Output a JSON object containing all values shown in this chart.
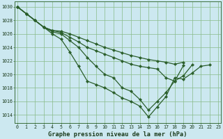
{
  "title": "Graphe pression niveau de la mer (hPa)",
  "bg_color": "#cce8f0",
  "grid_color": "#88bb88",
  "line_color": "#2a5e2a",
  "xlim_min": -0.3,
  "xlim_max": 23.3,
  "ylim_min": 1012.8,
  "ylim_max": 1030.8,
  "yticks": [
    1014,
    1016,
    1018,
    1020,
    1022,
    1024,
    1026,
    1028,
    1030
  ],
  "xtick_labels": [
    "0",
    "1",
    "2",
    "3",
    "4",
    "5",
    "6",
    "7",
    "8",
    "9",
    "10",
    "11",
    "12",
    "13",
    "14",
    "15",
    "16",
    "17",
    "18",
    "19",
    "20",
    "21",
    "22",
    "23"
  ],
  "series": [
    {
      "x": [
        0,
        1,
        2,
        3,
        4,
        5,
        6,
        7,
        8,
        9,
        10,
        11,
        12,
        13,
        14,
        15,
        16,
        17,
        18,
        19,
        20,
        21,
        22
      ],
      "y": [
        1030,
        1029,
        1028,
        1027,
        1026,
        1025.2,
        1023.3,
        1021.2,
        1019,
        1018.5,
        1018,
        1017.3,
        1016.5,
        1016,
        1015.3,
        1013.7,
        1015.2,
        1016.7,
        1019.5,
        1019.3,
        1020.2,
        1021.2,
        1021.4
      ]
    },
    {
      "x": [
        0,
        1,
        2,
        3,
        4,
        5,
        6,
        7,
        8,
        9,
        10,
        11,
        12,
        13,
        14,
        15,
        16,
        17,
        18,
        19,
        20
      ],
      "y": [
        1030,
        1029,
        1028,
        1027,
        1026.3,
        1026,
        1025,
        1024,
        1022.5,
        1021.2,
        1020,
        1019.5,
        1018,
        1017.5,
        1016.3,
        1014.7,
        1016,
        1017.3,
        1019,
        1019.8,
        1021.4
      ]
    },
    {
      "x": [
        0,
        1,
        2,
        3,
        4,
        5,
        6,
        7,
        8,
        9,
        10,
        11,
        12,
        13,
        14,
        15,
        16,
        17,
        18,
        19
      ],
      "y": [
        1030,
        1029,
        1028,
        1027,
        1026.5,
        1026.2,
        1025.5,
        1024.8,
        1024,
        1023.5,
        1023,
        1022.5,
        1022,
        1021.5,
        1021.2,
        1021,
        1020.8,
        1019.5,
        1019,
        1021.3
      ]
    },
    {
      "x": [
        0,
        1,
        2,
        3,
        4,
        5,
        6,
        7,
        8,
        9,
        10,
        11,
        12,
        13,
        14,
        15,
        16,
        17,
        18,
        19
      ],
      "y": [
        1030,
        1029,
        1028,
        1027,
        1026.5,
        1026.4,
        1026,
        1025.5,
        1025,
        1024.5,
        1024,
        1023.6,
        1023.2,
        1022.8,
        1022.5,
        1022.2,
        1022,
        1021.8,
        1021.5,
        1021.8
      ]
    }
  ],
  "marker_size": 2.2,
  "linewidth": 0.9,
  "tick_fontsize": 4.8,
  "xlabel_fontsize": 6.2
}
